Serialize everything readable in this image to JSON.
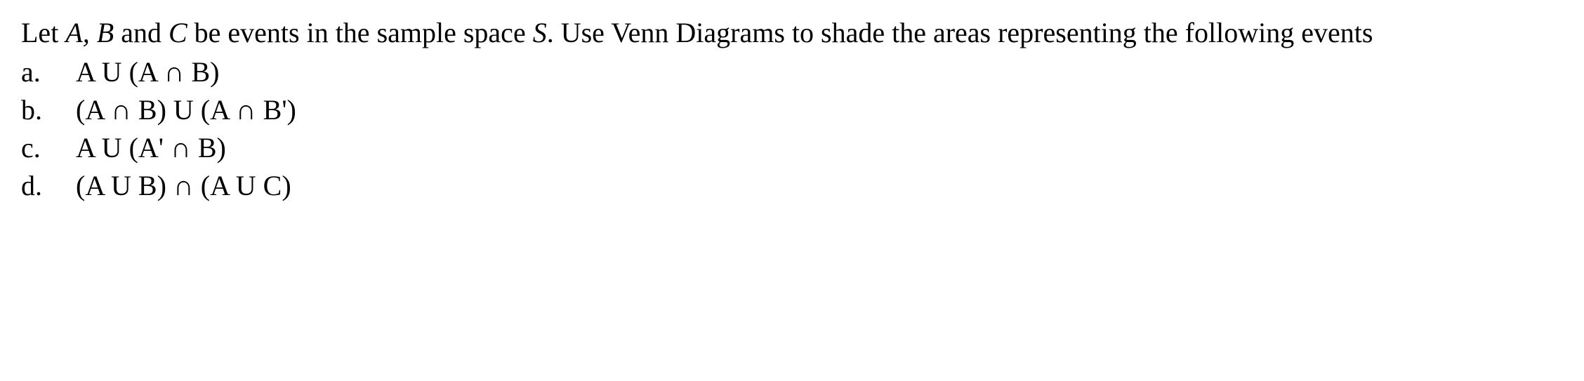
{
  "intro": {
    "part1": "Let ",
    "a": "A, B",
    "part2": " and ",
    "c": "C",
    "part3": " be events in the sample space ",
    "s": "S",
    "part4": ". Use Venn Diagrams to shade the areas representing the following events"
  },
  "items": [
    {
      "marker": "a.",
      "text": "A U (A  ∩  B)"
    },
    {
      "marker": "b.",
      "text": "(A  ∩  B) U (A  ∩  B')"
    },
    {
      "marker": "c.",
      "text": "A U (A'  ∩  B)"
    },
    {
      "marker": "d.",
      "text": "(A U B)  ∩  (A U C)"
    }
  ],
  "style": {
    "font_family": "Times New Roman",
    "font_size_pt": 30,
    "text_color": "#000000",
    "background_color": "#ffffff"
  }
}
